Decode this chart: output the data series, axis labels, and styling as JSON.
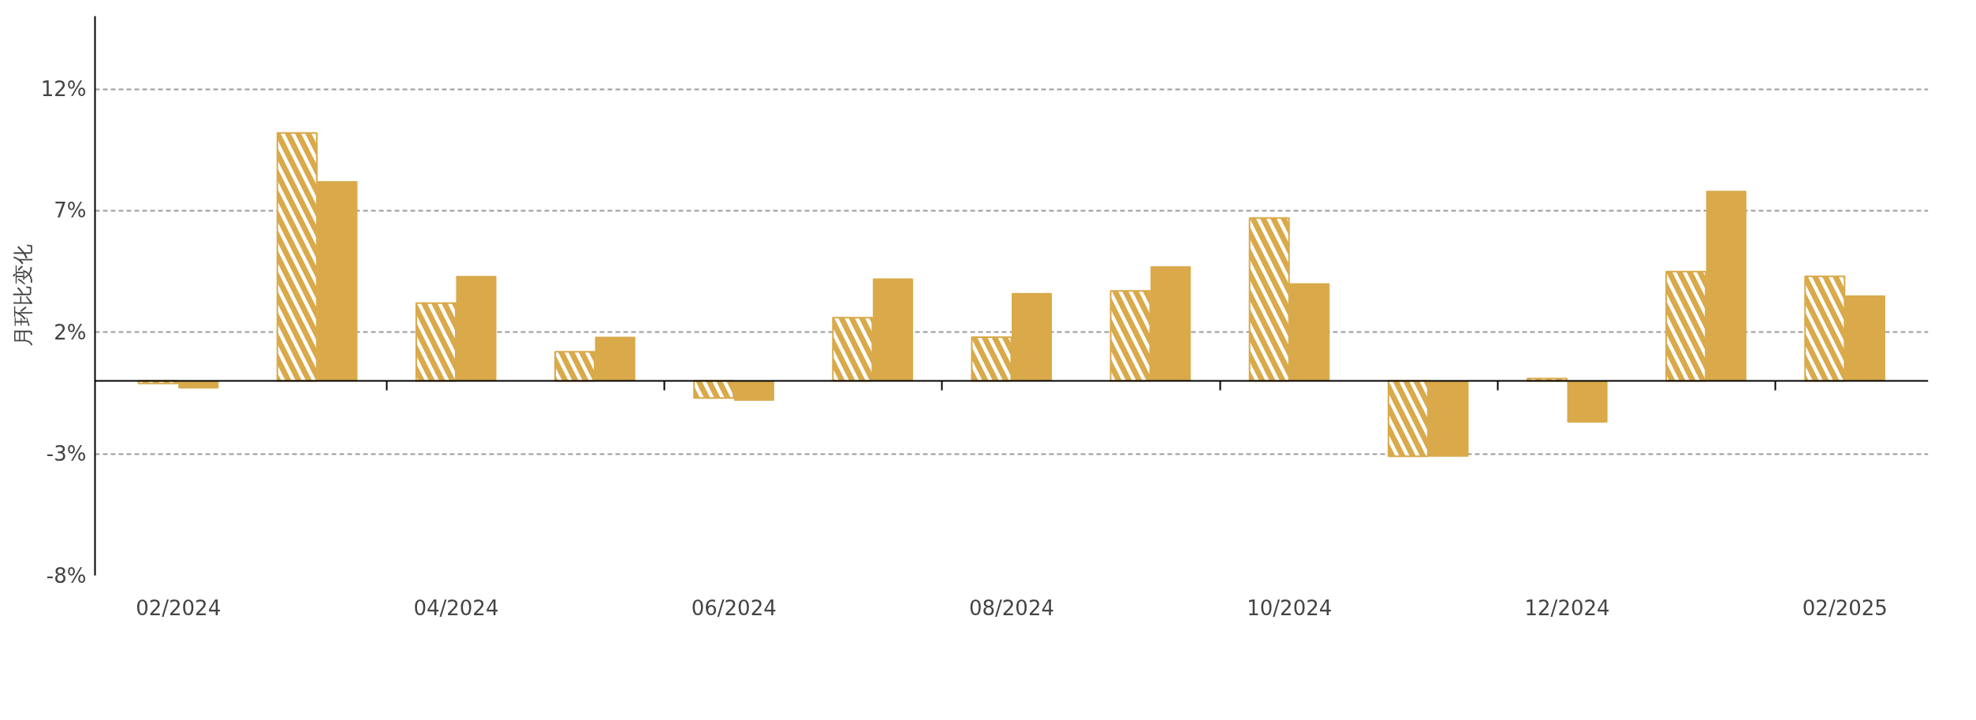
{
  "chart_data": {
    "type": "bar",
    "ylabel": "月环比变化",
    "categories": [
      "02/2024",
      null,
      "04/2024",
      null,
      "06/2024",
      null,
      "08/2024",
      null,
      "10/2024",
      null,
      "12/2024",
      null,
      "02/2025"
    ],
    "series": [
      {
        "color": "#d9a94a",
        "values": [
          -0.1,
          10.2,
          3.2,
          1.2,
          -0.7,
          2.6,
          1.8,
          3.7,
          6.7,
          -3.1,
          0.1,
          4.5,
          4.3
        ]
      },
      {
        "color": "#d9a94a",
        "values": [
          -0.3,
          8.2,
          4.3,
          1.8,
          -0.8,
          4.2,
          3.6,
          4.7,
          4.0,
          -3.1,
          -1.7,
          7.8,
          3.5
        ]
      }
    ],
    "ylim": [
      -8,
      15
    ],
    "yticks": [
      {
        "value": 12,
        "label": "12%"
      },
      {
        "value": 7,
        "label": "7%"
      },
      {
        "value": 2,
        "label": "2%"
      },
      {
        "value": -3,
        "label": "-3%"
      },
      {
        "value": -8,
        "label": "-8%"
      }
    ],
    "grid": "y"
  }
}
